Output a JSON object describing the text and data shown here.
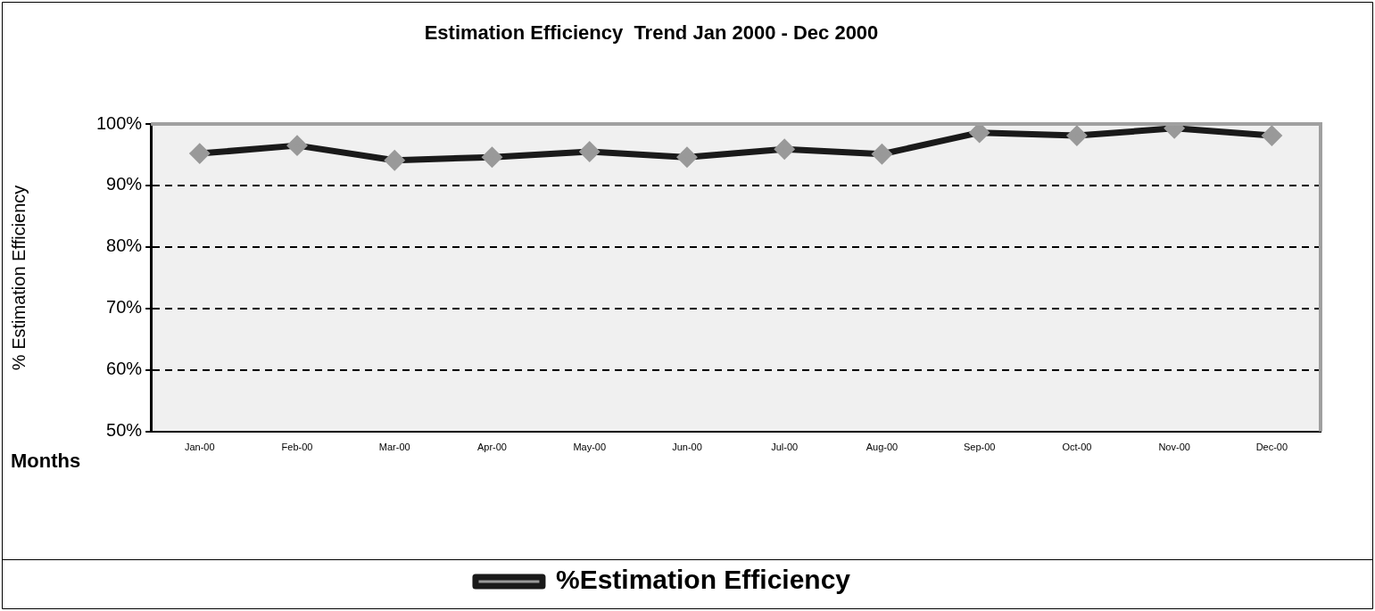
{
  "chart_data": {
    "type": "line",
    "title": "Estimation Efficiency  Trend Jan 2000 - Dec 2000",
    "xlabel": "Months",
    "ylabel": "% Estimation Efficiency",
    "categories": [
      "Jan-00",
      "Feb-00",
      "Mar-00",
      "Apr-00",
      "May-00",
      "Jun-00",
      "Jul-00",
      "Aug-00",
      "Sep-00",
      "Oct-00",
      "Nov-00",
      "Dec-00"
    ],
    "series": [
      {
        "name": "%Estimation Efficiency",
        "color": "#1a1a1a",
        "values": [
          95.2,
          96.5,
          94.1,
          94.6,
          95.5,
          94.6,
          95.9,
          95.1,
          98.6,
          98.1,
          99.3,
          98.1
        ]
      }
    ],
    "ylim": [
      50,
      100
    ],
    "yticks": [
      {
        "value": 50,
        "label": "50%"
      },
      {
        "value": 60,
        "label": "60%"
      },
      {
        "value": 70,
        "label": "70%"
      },
      {
        "value": 80,
        "label": "80%"
      },
      {
        "value": 90,
        "label": "90%"
      },
      {
        "value": 100,
        "label": "100%"
      }
    ],
    "grid": "y",
    "legend": "bottom",
    "marker": "diamond",
    "line_style": "solid"
  }
}
